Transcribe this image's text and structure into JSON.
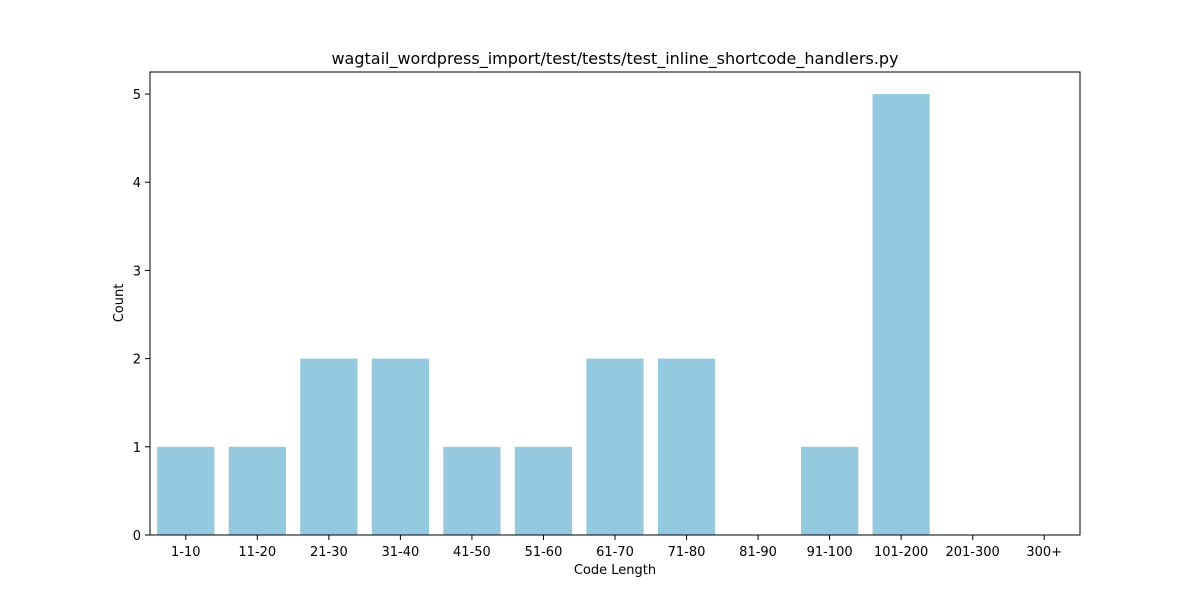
{
  "chart_data": {
    "type": "bar",
    "title": "wagtail_wordpress_import/test/tests/test_inline_shortcode_handlers.py",
    "xlabel": "Code Length",
    "ylabel": "Count",
    "categories": [
      "1-10",
      "11-20",
      "21-30",
      "31-40",
      "41-50",
      "51-60",
      "61-70",
      "71-80",
      "81-90",
      "91-100",
      "101-200",
      "201-300",
      "300+"
    ],
    "values": [
      1,
      1,
      2,
      2,
      1,
      1,
      2,
      2,
      0,
      1,
      5,
      0,
      0
    ],
    "yticks": [
      0,
      1,
      2,
      3,
      4,
      5
    ],
    "ylim": [
      0,
      5.25
    ],
    "grid": false,
    "legend": "none",
    "bar_color": "#95c9df"
  }
}
